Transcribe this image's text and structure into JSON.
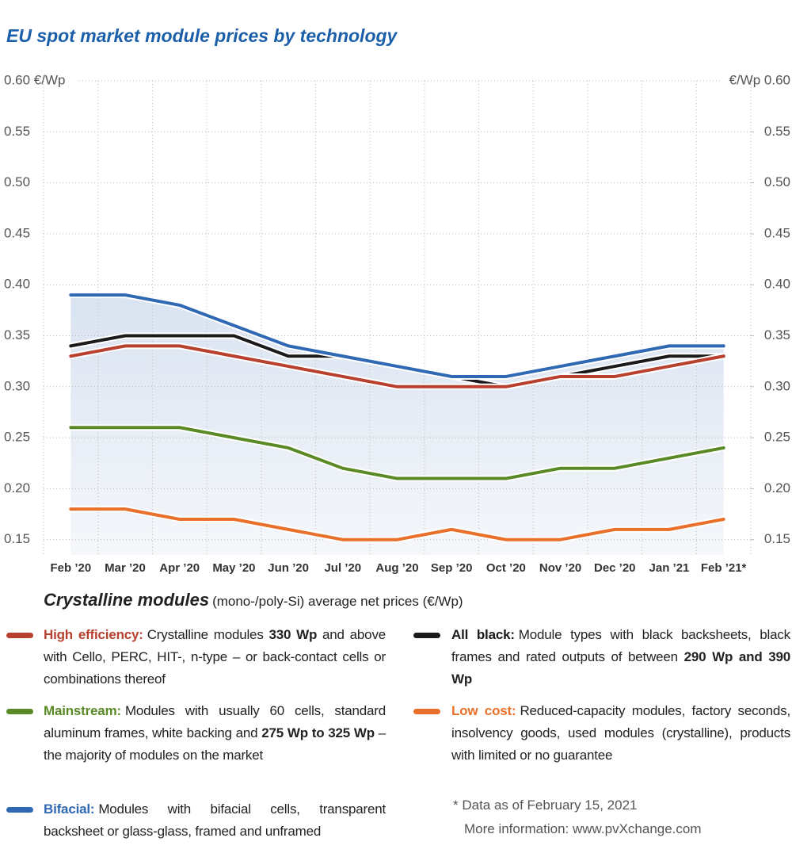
{
  "chart_data": {
    "type": "line",
    "title": "EU spot market module prices  by technology",
    "categories": [
      "Feb ’20",
      "Mar ’20",
      "Apr ’20",
      "May ’20",
      "Jun ’20",
      "Jul ’20",
      "Aug ’20",
      "Sep ’20",
      "Oct ’20",
      "Nov ’20",
      "Dec ’20",
      "Jan ’21",
      "Feb ’21*"
    ],
    "ylim": [
      0.135,
      0.6
    ],
    "yticks": [
      {
        "value": 0.6,
        "label": "0.60 €/Wp"
      },
      0.55,
      {
        "value": 0.5,
        "label": "0.50"
      },
      0.45,
      {
        "value": 0.4,
        "label": "0.40"
      },
      0.35,
      {
        "value": 0.3,
        "label": "0.30"
      },
      0.25,
      {
        "value": 0.2,
        "label": "0.20"
      },
      0.15
    ],
    "y2lim": [
      0.135,
      0.6
    ],
    "y2ticks": [
      {
        "value": 0.6,
        "label": "€/Wp 0.60"
      },
      0.55,
      {
        "value": 0.5,
        "label": "0.50"
      },
      0.45,
      {
        "value": 0.4,
        "label": "0.40"
      },
      0.35,
      {
        "value": 0.3,
        "label": "0.30"
      },
      0.25,
      {
        "value": 0.2,
        "label": "0.20"
      },
      0.15
    ],
    "grid": true,
    "area_under": "Bifacial:",
    "series": [
      {
        "name": "High efficiency:",
        "color": "#b8402f",
        "values": [
          0.33,
          0.34,
          0.34,
          0.33,
          0.32,
          0.31,
          0.3,
          0.3,
          0.3,
          0.31,
          0.31,
          0.32,
          0.33
        ],
        "description": [
          {
            "text": "Crystalline modules "
          },
          {
            "text": "330 Wp",
            "bold": true
          },
          {
            "text": " and above with Cello, PERC, HIT-, n-type – or back-contact cells or combinations thereof"
          }
        ]
      },
      {
        "name": "Mainstream:",
        "color": "#5a8a26",
        "values": [
          0.26,
          0.26,
          0.26,
          0.25,
          0.24,
          0.22,
          0.21,
          0.21,
          0.21,
          0.22,
          0.22,
          0.23,
          0.24
        ],
        "description": [
          {
            "text": "Modules with usually 60 cells, standard aluminum frames, white backing and "
          },
          {
            "text": "275 Wp to 325 Wp",
            "bold": true
          },
          {
            "text": " – the majority of modules on the market"
          }
        ]
      },
      {
        "name": "Bifacial:",
        "color": "#2f68b3",
        "values": [
          0.39,
          0.39,
          0.38,
          0.36,
          0.34,
          0.33,
          0.32,
          0.31,
          0.31,
          0.32,
          0.33,
          0.34,
          0.34
        ],
        "description": [
          {
            "text": "Modules with bifacial cells, transparent backsheet or glass-glass, framed and unframed"
          }
        ]
      },
      {
        "name": "All black:",
        "color": "#1a1a1a",
        "values": [
          0.34,
          0.35,
          0.35,
          0.35,
          0.33,
          0.33,
          0.32,
          0.31,
          0.3,
          0.31,
          0.32,
          0.33,
          0.33
        ],
        "description": [
          {
            "text": "Module types with black backsheets, black frames and rated outputs of between "
          },
          {
            "text": "290 Wp and 390 Wp",
            "bold": true
          }
        ]
      },
      {
        "name": "Low cost:",
        "color": "#e8702a",
        "values": [
          0.18,
          0.18,
          0.17,
          0.17,
          0.16,
          0.15,
          0.15,
          0.16,
          0.15,
          0.15,
          0.16,
          0.16,
          0.17
        ],
        "description": [
          {
            "text": "Reduced-capacity modules, factory seconds, insolvency goods, used modules (crystalline), products with limited or no guarantee"
          }
        ]
      }
    ],
    "subtitle": "Crystalline modules",
    "subtitle_note": "(mono-/poly-Si) average net prices (€/Wp)",
    "footnotes": [
      "* Data as of February 15, 2021",
      "More information: www.pvXchange.com"
    ]
  }
}
